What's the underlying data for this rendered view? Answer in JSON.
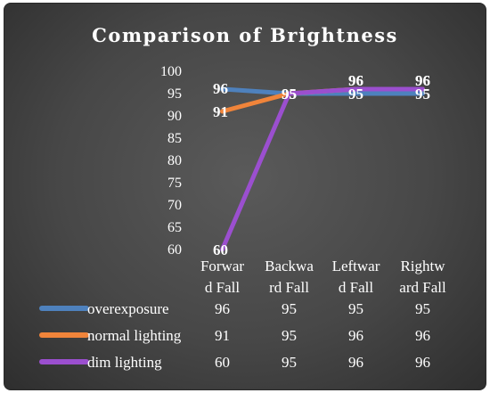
{
  "chart_data": {
    "type": "line",
    "title": "Comparison of Brightness",
    "categories": [
      "Forward Fall",
      "Backward Fall",
      "Leftward Fall",
      "Rightward Fall"
    ],
    "category_lines": [
      [
        "Forwar",
        "d Fall"
      ],
      [
        "Backwa",
        "rd Fall"
      ],
      [
        "Leftwar",
        "d Fall"
      ],
      [
        "Rightw",
        "ard Fall"
      ]
    ],
    "ylim": [
      60,
      100
    ],
    "yticks": [
      60,
      65,
      70,
      75,
      80,
      85,
      90,
      95,
      100
    ],
    "grid": false,
    "legend": "data-table-below",
    "series": [
      {
        "name": "overexposure",
        "color": "#4e81bd",
        "values": [
          96,
          95,
          95,
          95
        ]
      },
      {
        "name": "normal lighting",
        "color": "#f0843a",
        "values": [
          91,
          95,
          96,
          96
        ]
      },
      {
        "name": "dim lighting",
        "color": "#9b4fcf",
        "values": [
          60,
          95,
          96,
          96
        ]
      }
    ]
  }
}
